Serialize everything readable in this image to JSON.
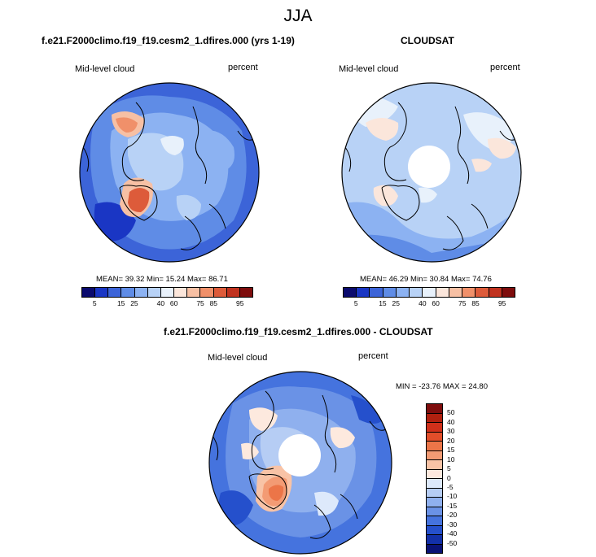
{
  "title": "JJA",
  "panels": [
    {
      "title": "f.e21.F2000climo.f19_f19.cesm2_1.dfires.000 (yrs 1-19)",
      "variable": "Mid-level cloud",
      "units": "percent",
      "stats": "MEAN=  39.32  Min=  15.24  Max=  86.71",
      "colorbar": {
        "ticks": [
          "5",
          "15",
          "25",
          "40",
          "60",
          "75",
          "85",
          "95"
        ],
        "colors": [
          "#0b0b6e",
          "#1a36c4",
          "#3c64d8",
          "#5f8ce6",
          "#8cb2f2",
          "#b8d2f6",
          "#e8f1fb",
          "#fbe6db",
          "#f7c0a4",
          "#f0906a",
          "#dd5b3a",
          "#c0321f",
          "#7e0d0d"
        ]
      }
    },
    {
      "title": "CLOUDSAT",
      "variable": "Mid-level cloud",
      "units": "percent",
      "stats": "MEAN=  46.29  Min=  30.84  Max=  74.76",
      "colorbar": {
        "ticks": [
          "5",
          "15",
          "25",
          "40",
          "60",
          "75",
          "85",
          "95"
        ],
        "colors": [
          "#0b0b6e",
          "#1a36c4",
          "#3c64d8",
          "#5f8ce6",
          "#8cb2f2",
          "#b8d2f6",
          "#e8f1fb",
          "#fbe6db",
          "#f7c0a4",
          "#f0906a",
          "#dd5b3a",
          "#c0321f",
          "#7e0d0d"
        ]
      }
    },
    {
      "title": "f.e21.F2000climo.f19_f19.cesm2_1.dfires.000 - CLOUDSAT",
      "variable": "Mid-level cloud",
      "units": "percent",
      "stats": "MIN = -23.76 MAX =  24.80",
      "colorbar": {
        "ticks": [
          "50",
          "40",
          "30",
          "20",
          "15",
          "10",
          "5",
          "0",
          "-5",
          "-10",
          "-15",
          "-20",
          "-30",
          "-40",
          "-50"
        ],
        "colors": [
          "#7e0d0d",
          "#b0200f",
          "#d0301a",
          "#e24e2a",
          "#ec7548",
          "#f39b74",
          "#f8c3a6",
          "#fde9de",
          "#dde9fb",
          "#b6cdf4",
          "#8fb0ee",
          "#6a92e6",
          "#4573de",
          "#2550cc",
          "#1330a8",
          "#0a1275"
        ]
      }
    }
  ],
  "icons": {
    "map_1": "north-polar-stereographic-map",
    "map_2": "north-polar-stereographic-map",
    "map_3": "north-polar-stereographic-map"
  }
}
